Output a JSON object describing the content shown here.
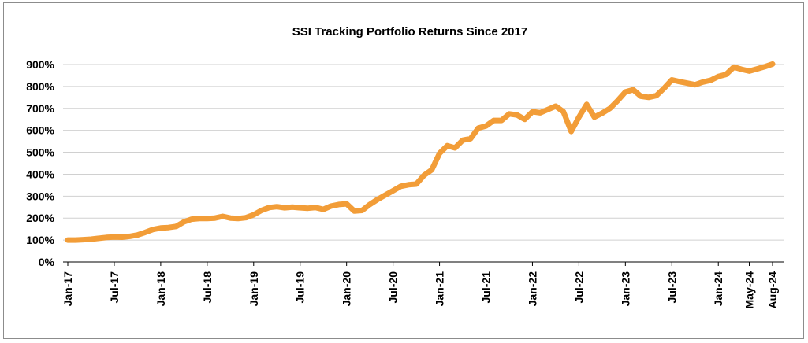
{
  "chart_data": {
    "type": "line",
    "title": "SSI Tracking Portfolio Returns Since 2017",
    "xlabel": "",
    "ylabel": "",
    "ylim": [
      0,
      900
    ],
    "y_ticks": [
      "0%",
      "100%",
      "200%",
      "300%",
      "400%",
      "500%",
      "600%",
      "700%",
      "800%",
      "900%"
    ],
    "x_tick_labels": [
      {
        "label": "Jan-17",
        "index": 0
      },
      {
        "label": "Jul-17",
        "index": 6
      },
      {
        "label": "Jan-18",
        "index": 12
      },
      {
        "label": "Jul-18",
        "index": 18
      },
      {
        "label": "Jan-19",
        "index": 24
      },
      {
        "label": "Jul-19",
        "index": 30
      },
      {
        "label": "Jan-20",
        "index": 36
      },
      {
        "label": "Jul-20",
        "index": 42
      },
      {
        "label": "Jan-21",
        "index": 48
      },
      {
        "label": "Jul-21",
        "index": 54
      },
      {
        "label": "Jan-22",
        "index": 60
      },
      {
        "label": "Jul-22",
        "index": 66
      },
      {
        "label": "Jan-23",
        "index": 72
      },
      {
        "label": "Jul-23",
        "index": 78
      },
      {
        "label": "Jan-24",
        "index": 84
      },
      {
        "label": "May-24",
        "index": 88
      },
      {
        "label": "Aug-24",
        "index": 91
      }
    ],
    "series": [
      {
        "name": "SSI Tracking Portfolio",
        "color": "#F29D38",
        "values": [
          100,
          100,
          102,
          104,
          108,
          112,
          114,
          113,
          117,
          123,
          135,
          148,
          155,
          157,
          162,
          183,
          195,
          198,
          198,
          200,
          208,
          200,
          198,
          202,
          215,
          235,
          248,
          252,
          247,
          250,
          247,
          245,
          248,
          240,
          255,
          262,
          265,
          232,
          235,
          262,
          285,
          305,
          325,
          345,
          352,
          355,
          395,
          420,
          495,
          530,
          520,
          555,
          562,
          610,
          620,
          645,
          645,
          675,
          670,
          650,
          685,
          680,
          695,
          710,
          685,
          595,
          660,
          718,
          660,
          678,
          700,
          735,
          775,
          785,
          755,
          750,
          758,
          792,
          830,
          822,
          815,
          808,
          820,
          828,
          845,
          855,
          888,
          878,
          870,
          880,
          890,
          902
        ]
      }
    ]
  }
}
